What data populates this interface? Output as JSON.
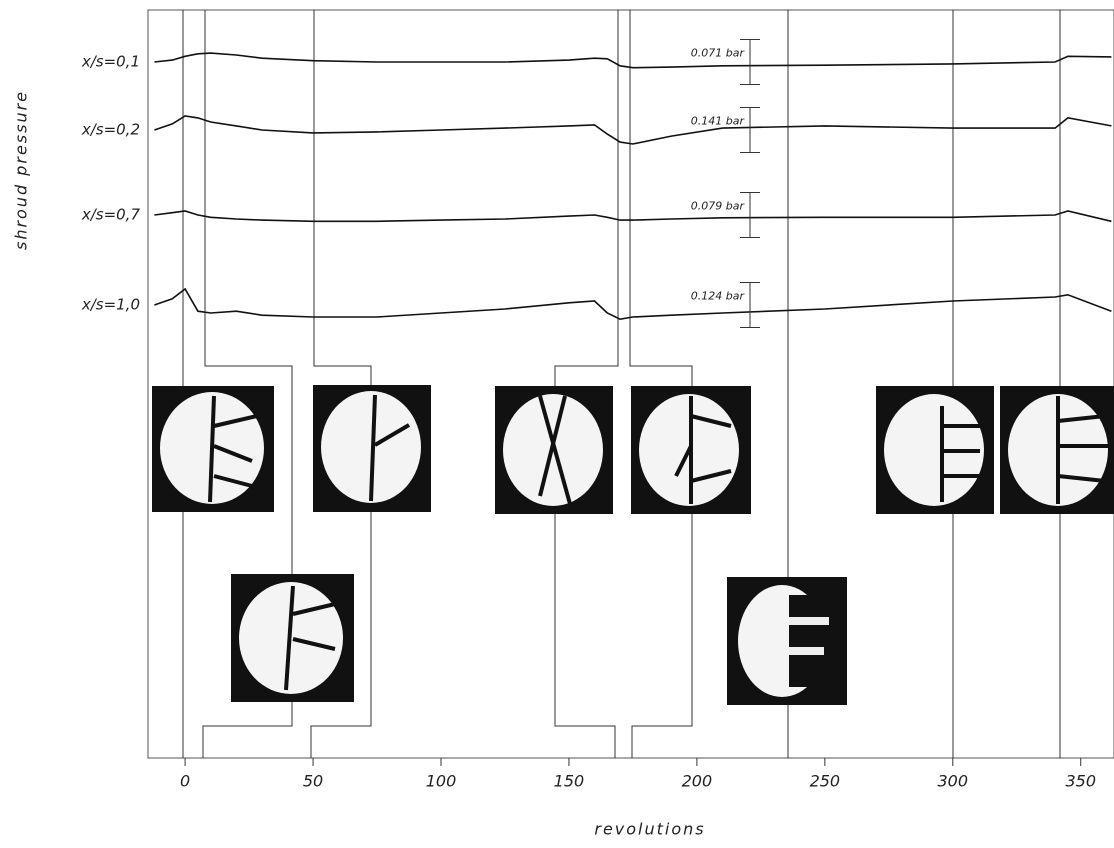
{
  "chart_data": {
    "type": "line",
    "x_label": "revolutions",
    "y_label": "shroud pressure",
    "xlim": [
      -14.5,
      363
    ],
    "xticks": [
      0,
      50,
      100,
      150,
      200,
      250,
      300,
      350
    ],
    "x": [
      -12,
      -5,
      0,
      5,
      10,
      20,
      30,
      50,
      75,
      100,
      125,
      150,
      160,
      165,
      170,
      175,
      190,
      210,
      250,
      300,
      340,
      345,
      362
    ],
    "series": [
      {
        "name": "x/s=0,1",
        "color": "#111111",
        "scale": {
          "value": 0.071,
          "label": "0.071 bar"
        },
        "values": [
          0,
          0.003,
          0.009,
          0.013,
          0.014,
          0.011,
          0.006,
          0.002,
          0,
          0,
          0,
          0.003,
          0.006,
          0.005,
          -0.006,
          -0.009,
          -0.008,
          -0.006,
          -0.005,
          -0.003,
          0,
          0.009,
          0.008
        ]
      },
      {
        "name": "x/s=0,2",
        "color": "#111111",
        "scale": {
          "value": 0.141,
          "label": "0.141 bar"
        },
        "values": [
          0,
          0.019,
          0.044,
          0.038,
          0.025,
          0.013,
          0,
          -0.009,
          -0.006,
          0,
          0.006,
          0.013,
          0.016,
          -0.013,
          -0.038,
          -0.044,
          -0.019,
          0.006,
          0.013,
          0.006,
          0.006,
          0.038,
          0.013
        ]
      },
      {
        "name": "x/s=0,7",
        "color": "#111111",
        "scale": {
          "value": 0.079,
          "label": "0.079 bar"
        },
        "values": [
          0,
          0.004,
          0.007,
          0,
          -0.004,
          -0.007,
          -0.009,
          -0.011,
          -0.011,
          -0.009,
          -0.007,
          -0.002,
          0,
          -0.004,
          -0.009,
          -0.009,
          -0.007,
          -0.005,
          -0.004,
          -0.004,
          0,
          0.007,
          -0.011
        ]
      },
      {
        "name": "x/s=1,0",
        "color": "#111111",
        "scale": {
          "value": 0.124,
          "label": "0.124 bar"
        },
        "values": [
          0,
          0.017,
          0.044,
          -0.017,
          -0.022,
          -0.017,
          -0.028,
          -0.033,
          -0.033,
          -0.022,
          -0.011,
          0.006,
          0.011,
          -0.022,
          -0.039,
          -0.033,
          -0.028,
          -0.022,
          -0.011,
          0.011,
          0.022,
          0.028,
          -0.017
        ]
      }
    ]
  }
}
